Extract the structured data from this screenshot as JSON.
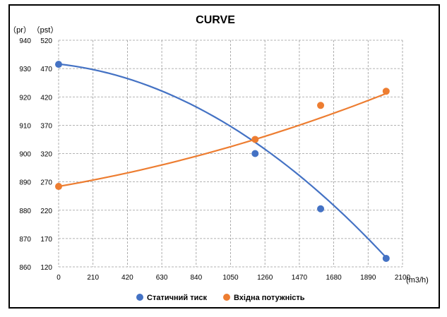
{
  "chart_data": {
    "type": "line",
    "title": "CURVE",
    "y_left_label": "（pr）",
    "y_right_label": "（pst）",
    "x_unit_label": "(m3/h)",
    "x_ticks": [
      0,
      210,
      420,
      630,
      840,
      1050,
      1260,
      1470,
      1680,
      1890,
      2100
    ],
    "y_left_ticks": [
      860,
      870,
      880,
      890,
      900,
      910,
      920,
      930,
      940
    ],
    "y_right_ticks": [
      120,
      170,
      220,
      270,
      320,
      370,
      420,
      470,
      520
    ],
    "xlim": [
      0,
      2100
    ],
    "ylim_left": [
      860,
      940
    ],
    "ylim_right": [
      120,
      520
    ],
    "grid": true,
    "legend_position": "bottom",
    "series": [
      {
        "name": "Статичний тиск",
        "color": "#4472C4",
        "axis": "left",
        "points": [
          {
            "x": 0,
            "y": 931.5
          },
          {
            "x": 1200,
            "y": 900
          },
          {
            "x": 1600,
            "y": 880.5
          },
          {
            "x": 2000,
            "y": 863
          }
        ]
      },
      {
        "name": "Вхідна потужність",
        "color": "#ED7D31",
        "axis": "right",
        "points": [
          {
            "x": 0,
            "y": 262
          },
          {
            "x": 1200,
            "y": 345
          },
          {
            "x": 1600,
            "y": 405
          },
          {
            "x": 2000,
            "y": 430
          }
        ]
      }
    ]
  }
}
